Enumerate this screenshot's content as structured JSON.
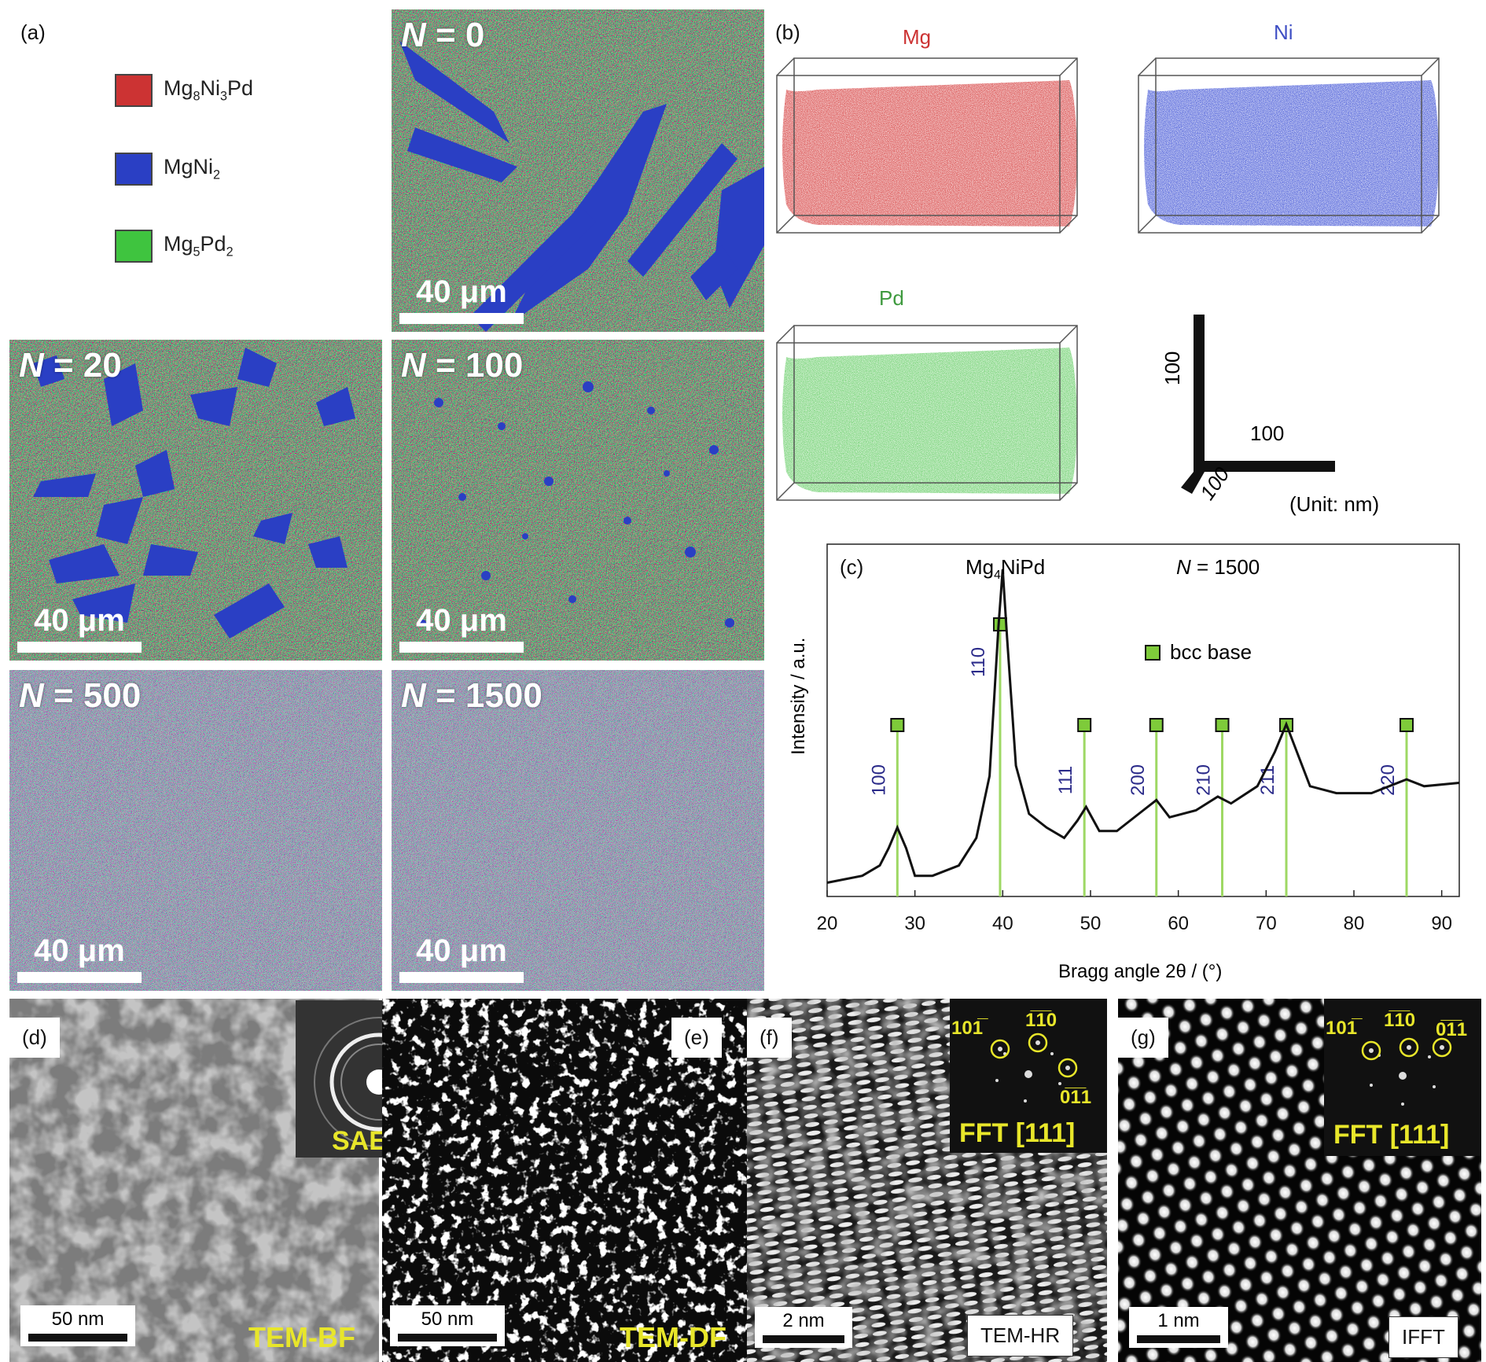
{
  "panel_a": {
    "label": "(a)",
    "legend": [
      {
        "base": "Mg",
        "sub1": "8",
        "mid": "Ni",
        "sub2": "3",
        "end": "Pd",
        "color": "#cc3333"
      },
      {
        "base": "MgNi",
        "sub1": "2",
        "mid": "",
        "sub2": "",
        "end": "",
        "color": "#2a3fc4"
      },
      {
        "base": "Mg",
        "sub1": "5",
        "mid": "Pd",
        "sub2": "2",
        "end": "",
        "color": "#3fc43f"
      }
    ],
    "maps": [
      {
        "n_prefix": "N",
        "n_value": " = 0",
        "scale": "40 μm"
      },
      {
        "n_prefix": "N",
        "n_value": " = 20",
        "scale": "40 μm"
      },
      {
        "n_prefix": "N",
        "n_value": " = 100",
        "scale": "40 μm"
      },
      {
        "n_prefix": "N",
        "n_value": " = 500",
        "scale": "40 μm"
      },
      {
        "n_prefix": "N",
        "n_value": " = 1500",
        "scale": "40 μm"
      }
    ]
  },
  "panel_b": {
    "label": "(b)",
    "elements": [
      {
        "name": "Mg",
        "color": "#cc3333"
      },
      {
        "name": "Ni",
        "color": "#3f4fc4"
      },
      {
        "name": "Pd",
        "color": "#3f9a3f"
      }
    ],
    "axes": {
      "x": "100",
      "y": "100",
      "z": "100",
      "unit": "(Unit: nm)"
    }
  },
  "panel_c": {
    "label": "(c)",
    "composition": {
      "base": "Mg",
      "sub": "4",
      "rest": "NiPd"
    },
    "cycles": {
      "prefix": "N",
      "value": " = 1500"
    },
    "legend": "bcc base",
    "ylabel": "Intensity / a.u.",
    "xlabel": "Bragg angle 2θ / (°)",
    "colors": {
      "marker": "#7ecb3a",
      "line": "#9ed864",
      "index": "#2b2b8a"
    }
  },
  "chart_data": {
    "type": "line",
    "xlabel": "Bragg angle 2θ / (°)",
    "ylabel": "Intensity / a.u.",
    "xlim": [
      20,
      92
    ],
    "xticks": [
      20,
      30,
      40,
      50,
      60,
      70,
      80,
      90
    ],
    "x": [
      20,
      24,
      26,
      27,
      28,
      29,
      30,
      32,
      35,
      37,
      38.5,
      39.5,
      40,
      40.5,
      41.5,
      43,
      45,
      47,
      48.5,
      49.5,
      51,
      53,
      56,
      57.5,
      59,
      62,
      64.5,
      66,
      69,
      71,
      72.3,
      73.5,
      75,
      78,
      82,
      86,
      88,
      92
    ],
    "y": [
      0.04,
      0.06,
      0.09,
      0.14,
      0.2,
      0.14,
      0.06,
      0.06,
      0.09,
      0.17,
      0.35,
      0.78,
      0.95,
      0.75,
      0.38,
      0.24,
      0.2,
      0.17,
      0.22,
      0.26,
      0.19,
      0.19,
      0.25,
      0.28,
      0.23,
      0.25,
      0.29,
      0.27,
      0.32,
      0.42,
      0.5,
      0.42,
      0.32,
      0.3,
      0.3,
      0.34,
      0.32,
      0.33
    ],
    "peaks": [
      {
        "hkl": "100",
        "x": 28
      },
      {
        "hkl": "110",
        "x": 39.7
      },
      {
        "hkl": "111",
        "x": 49.3
      },
      {
        "hkl": "200",
        "x": 57.5
      },
      {
        "hkl": "210",
        "x": 65
      },
      {
        "hkl": "211",
        "x": 72.3
      },
      {
        "hkl": "220",
        "x": 86
      }
    ]
  },
  "panel_d": {
    "label": "(d)",
    "scale": "50 nm",
    "mode": "TEM-BF",
    "inset": "SAED"
  },
  "panel_e": {
    "label": "(e)",
    "scale": "50 nm",
    "mode": "TEM-DF"
  },
  "panel_f": {
    "label": "(f)",
    "scale": "2 nm",
    "mode": "TEM-HR",
    "inset": "FFT [111]",
    "spots": [
      "101̅",
      "1̅1̅0",
      "0̅1̅1"
    ]
  },
  "panel_g": {
    "label": "(g)",
    "scale": "1 nm",
    "mode": "IFFT",
    "inset": "FFT [111]",
    "spots": [
      "101̅",
      "1̅1̅0",
      "0̅1̅1"
    ]
  }
}
